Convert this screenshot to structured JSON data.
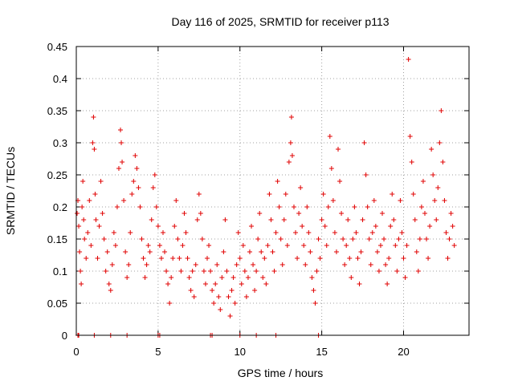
{
  "chart_data": {
    "type": "scatter",
    "title": "Day 116 of 2025, SRMTID for receiver p113",
    "xlabel": "GPS time / hours",
    "ylabel": "SRMTID / TECUs",
    "xlim": [
      0,
      24
    ],
    "ylim": [
      0,
      0.45
    ],
    "xticks": [
      0,
      5,
      10,
      15,
      20
    ],
    "xtick_labels": [
      "0",
      "5",
      "10",
      "15",
      "20"
    ],
    "yticks": [
      0,
      0.05,
      0.1,
      0.15,
      0.2,
      0.25,
      0.3,
      0.35,
      0.4,
      0.45
    ],
    "ytick_labels": [
      "0",
      "0.05",
      "0.1",
      "0.15",
      "0.2",
      "0.25",
      "0.3",
      "0.35",
      "0.4",
      "0.45"
    ],
    "grid": true,
    "marker": "+",
    "color": "#e00000",
    "series": [
      {
        "name": "SRMTID",
        "points": [
          [
            0.05,
            0.19
          ],
          [
            0.1,
            0.21
          ],
          [
            0.15,
            0.17
          ],
          [
            0.2,
            0.13
          ],
          [
            0.25,
            0.1
          ],
          [
            0.3,
            0.08
          ],
          [
            0.35,
            0.2
          ],
          [
            0.4,
            0.24
          ],
          [
            0.45,
            0.18
          ],
          [
            0.5,
            0.15
          ],
          [
            0.6,
            0.12
          ],
          [
            0.7,
            0.16
          ],
          [
            0.8,
            0.21
          ],
          [
            0.9,
            0.14
          ],
          [
            1.0,
            0.3
          ],
          [
            1.05,
            0.34
          ],
          [
            1.1,
            0.29
          ],
          [
            1.15,
            0.22
          ],
          [
            1.2,
            0.18
          ],
          [
            1.3,
            0.12
          ],
          [
            1.4,
            0.17
          ],
          [
            1.5,
            0.24
          ],
          [
            1.6,
            0.19
          ],
          [
            1.7,
            0.15
          ],
          [
            1.8,
            0.1
          ],
          [
            1.9,
            0.13
          ],
          [
            2.0,
            0.08
          ],
          [
            2.1,
            0.07
          ],
          [
            2.2,
            0.11
          ],
          [
            2.3,
            0.16
          ],
          [
            2.4,
            0.14
          ],
          [
            2.5,
            0.2
          ],
          [
            2.6,
            0.26
          ],
          [
            2.7,
            0.32
          ],
          [
            2.75,
            0.3
          ],
          [
            2.8,
            0.27
          ],
          [
            2.9,
            0.21
          ],
          [
            3.0,
            0.13
          ],
          [
            3.1,
            0.09
          ],
          [
            3.2,
            0.11
          ],
          [
            3.3,
            0.16
          ],
          [
            3.4,
            0.22
          ],
          [
            3.5,
            0.24
          ],
          [
            3.6,
            0.28
          ],
          [
            3.7,
            0.26
          ],
          [
            3.8,
            0.23
          ],
          [
            3.9,
            0.2
          ],
          [
            4.0,
            0.15
          ],
          [
            4.1,
            0.12
          ],
          [
            4.2,
            0.09
          ],
          [
            4.3,
            0.11
          ],
          [
            4.4,
            0.14
          ],
          [
            4.5,
            0.13
          ],
          [
            4.6,
            0.18
          ],
          [
            4.7,
            0.23
          ],
          [
            4.8,
            0.25
          ],
          [
            4.9,
            0.2
          ],
          [
            5.0,
            0.17
          ],
          [
            5.1,
            0.14
          ],
          [
            5.2,
            0.12
          ],
          [
            5.3,
            0.16
          ],
          [
            5.4,
            0.13
          ],
          [
            5.5,
            0.1
          ],
          [
            5.6,
            0.08
          ],
          [
            5.7,
            0.05
          ],
          [
            5.8,
            0.09
          ],
          [
            5.9,
            0.12
          ],
          [
            6.0,
            0.17
          ],
          [
            6.1,
            0.21
          ],
          [
            6.2,
            0.15
          ],
          [
            6.3,
            0.12
          ],
          [
            6.4,
            0.1
          ],
          [
            6.5,
            0.14
          ],
          [
            6.6,
            0.19
          ],
          [
            6.7,
            0.16
          ],
          [
            6.8,
            0.12
          ],
          [
            6.9,
            0.09
          ],
          [
            7.0,
            0.07
          ],
          [
            7.1,
            0.1
          ],
          [
            7.2,
            0.06
          ],
          [
            7.3,
            0.11
          ],
          [
            7.4,
            0.18
          ],
          [
            7.5,
            0.22
          ],
          [
            7.6,
            0.19
          ],
          [
            7.7,
            0.15
          ],
          [
            7.8,
            0.1
          ],
          [
            7.9,
            0.08
          ],
          [
            8.0,
            0.12
          ],
          [
            8.1,
            0.14
          ],
          [
            8.2,
            0.1
          ],
          [
            8.3,
            0.07
          ],
          [
            8.4,
            0.05
          ],
          [
            8.5,
            0.08
          ],
          [
            8.6,
            0.11
          ],
          [
            8.7,
            0.06
          ],
          [
            8.8,
            0.04
          ],
          [
            8.9,
            0.09
          ],
          [
            9.0,
            0.13
          ],
          [
            9.1,
            0.18
          ],
          [
            9.2,
            0.1
          ],
          [
            9.3,
            0.06
          ],
          [
            9.4,
            0.03
          ],
          [
            9.5,
            0.07
          ],
          [
            9.6,
            0.09
          ],
          [
            9.7,
            0.05
          ],
          [
            9.8,
            0.11
          ],
          [
            9.9,
            0.16
          ],
          [
            10.0,
            0.12
          ],
          [
            10.1,
            0.08
          ],
          [
            10.2,
            0.14
          ],
          [
            10.3,
            0.1
          ],
          [
            10.4,
            0.06
          ],
          [
            10.5,
            0.09
          ],
          [
            10.6,
            0.13
          ],
          [
            10.7,
            0.17
          ],
          [
            10.8,
            0.11
          ],
          [
            10.9,
            0.07
          ],
          [
            11.0,
            0.1
          ],
          [
            11.1,
            0.15
          ],
          [
            11.2,
            0.19
          ],
          [
            11.3,
            0.13
          ],
          [
            11.4,
            0.09
          ],
          [
            11.5,
            0.12
          ],
          [
            11.6,
            0.08
          ],
          [
            11.7,
            0.14
          ],
          [
            11.8,
            0.22
          ],
          [
            11.9,
            0.18
          ],
          [
            12.0,
            0.13
          ],
          [
            12.1,
            0.1
          ],
          [
            12.2,
            0.16
          ],
          [
            12.3,
            0.24
          ],
          [
            12.4,
            0.2
          ],
          [
            12.5,
            0.15
          ],
          [
            12.6,
            0.11
          ],
          [
            12.7,
            0.18
          ],
          [
            12.8,
            0.22
          ],
          [
            12.9,
            0.14
          ],
          [
            13.0,
            0.27
          ],
          [
            13.1,
            0.3
          ],
          [
            13.15,
            0.34
          ],
          [
            13.2,
            0.28
          ],
          [
            13.3,
            0.2
          ],
          [
            13.4,
            0.16
          ],
          [
            13.5,
            0.12
          ],
          [
            13.6,
            0.19
          ],
          [
            13.7,
            0.23
          ],
          [
            13.8,
            0.17
          ],
          [
            13.9,
            0.14
          ],
          [
            14.0,
            0.11
          ],
          [
            14.1,
            0.2
          ],
          [
            14.2,
            0.16
          ],
          [
            14.3,
            0.13
          ],
          [
            14.4,
            0.09
          ],
          [
            14.5,
            0.07
          ],
          [
            14.6,
            0.05
          ],
          [
            14.7,
            0.1
          ],
          [
            14.8,
            0.15
          ],
          [
            14.9,
            0.12
          ],
          [
            15.0,
            0.18
          ],
          [
            15.1,
            0.22
          ],
          [
            15.2,
            0.17
          ],
          [
            15.3,
            0.14
          ],
          [
            15.4,
            0.2
          ],
          [
            15.5,
            0.31
          ],
          [
            15.6,
            0.26
          ],
          [
            15.7,
            0.21
          ],
          [
            15.8,
            0.16
          ],
          [
            15.9,
            0.13
          ],
          [
            16.0,
            0.29
          ],
          [
            16.1,
            0.24
          ],
          [
            16.2,
            0.19
          ],
          [
            16.3,
            0.15
          ],
          [
            16.4,
            0.11
          ],
          [
            16.5,
            0.14
          ],
          [
            16.6,
            0.18
          ],
          [
            16.7,
            0.12
          ],
          [
            16.8,
            0.09
          ],
          [
            16.9,
            0.15
          ],
          [
            17.0,
            0.2
          ],
          [
            17.1,
            0.16
          ],
          [
            17.2,
            0.12
          ],
          [
            17.3,
            0.08
          ],
          [
            17.4,
            0.13
          ],
          [
            17.5,
            0.18
          ],
          [
            17.6,
            0.3
          ],
          [
            17.7,
            0.25
          ],
          [
            17.8,
            0.2
          ],
          [
            17.9,
            0.15
          ],
          [
            18.0,
            0.11
          ],
          [
            18.1,
            0.16
          ],
          [
            18.2,
            0.21
          ],
          [
            18.3,
            0.17
          ],
          [
            18.4,
            0.13
          ],
          [
            18.5,
            0.1
          ],
          [
            18.6,
            0.14
          ],
          [
            18.7,
            0.19
          ],
          [
            18.8,
            0.15
          ],
          [
            18.9,
            0.11
          ],
          [
            19.0,
            0.08
          ],
          [
            19.1,
            0.12
          ],
          [
            19.2,
            0.17
          ],
          [
            19.3,
            0.22
          ],
          [
            19.4,
            0.18
          ],
          [
            19.5,
            0.14
          ],
          [
            19.6,
            0.1
          ],
          [
            19.7,
            0.15
          ],
          [
            19.8,
            0.21
          ],
          [
            19.9,
            0.16
          ],
          [
            20.0,
            0.12
          ],
          [
            20.1,
            0.09
          ],
          [
            20.2,
            0.14
          ],
          [
            20.3,
            0.43
          ],
          [
            20.4,
            0.31
          ],
          [
            20.5,
            0.27
          ],
          [
            20.6,
            0.22
          ],
          [
            20.7,
            0.18
          ],
          [
            20.8,
            0.13
          ],
          [
            20.9,
            0.1
          ],
          [
            21.0,
            0.15
          ],
          [
            21.1,
            0.2
          ],
          [
            21.2,
            0.24
          ],
          [
            21.3,
            0.19
          ],
          [
            21.4,
            0.15
          ],
          [
            21.5,
            0.12
          ],
          [
            21.6,
            0.17
          ],
          [
            21.7,
            0.29
          ],
          [
            21.8,
            0.25
          ],
          [
            21.9,
            0.21
          ],
          [
            22.0,
            0.18
          ],
          [
            22.1,
            0.23
          ],
          [
            22.2,
            0.3
          ],
          [
            22.3,
            0.35
          ],
          [
            22.4,
            0.27
          ],
          [
            22.5,
            0.21
          ],
          [
            22.6,
            0.16
          ],
          [
            22.7,
            0.12
          ],
          [
            22.8,
            0.15
          ],
          [
            22.9,
            0.19
          ],
          [
            23.0,
            0.17
          ],
          [
            23.1,
            0.14
          ],
          [
            0.1,
            0.0
          ],
          [
            0.15,
            0.0
          ],
          [
            1.1,
            0.0
          ],
          [
            2.1,
            0.0
          ],
          [
            3.1,
            0.0
          ],
          [
            5.0,
            0.0
          ],
          [
            5.1,
            0.0
          ],
          [
            8.2,
            0.0
          ],
          [
            8.3,
            0.0
          ],
          [
            10.0,
            0.0
          ],
          [
            11.0,
            0.0
          ],
          [
            12.2,
            0.0
          ],
          [
            14.8,
            0.0
          ]
        ]
      }
    ]
  }
}
